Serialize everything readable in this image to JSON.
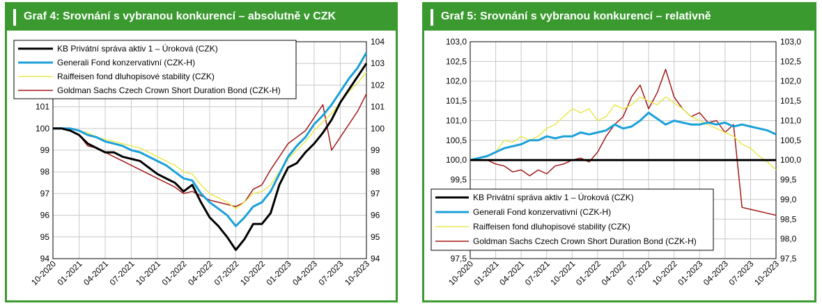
{
  "colors": {
    "header": "#3a9a2f",
    "kb": "#000000",
    "generali": "#1aa0d8",
    "raiffeisen": "#e8e850",
    "goldman": "#a01818",
    "grid": "#c8c8c8"
  },
  "charts": [
    {
      "title": "Graf 4: Srovnání s vybranou konkurencí – absolutně v CZK"
    },
    {
      "title": "Graf 5: Srovnání s vybranou konkurencí – relativně"
    }
  ],
  "chart_data": [
    {
      "type": "line",
      "title": "Graf 4: Srovnání s vybranou konkurencí – absolutně v CZK",
      "x_ticks": [
        "10-2020",
        "01-2021",
        "04-2021",
        "07-2021",
        "10-2021",
        "01-2022",
        "04-2022",
        "07-2022",
        "10-2022",
        "01-2023",
        "04-2023",
        "07-2023",
        "10-2023"
      ],
      "ylim": [
        94,
        104
      ],
      "y_ticks_left": [
        "94",
        "95",
        "96",
        "97",
        "98",
        "99",
        "100",
        "101"
      ],
      "y_ticks_right": [
        "94",
        "95",
        "96",
        "97",
        "98",
        "99",
        "100",
        "101",
        "102",
        "103",
        "104"
      ],
      "grid": true,
      "legend_position": "top-left",
      "series": [
        {
          "name": "KB Privátní správa aktiv 1 – Úroková  (CZK)",
          "color": "#000000",
          "width": 3,
          "x": [
            "2020-10",
            "2020-11",
            "2020-12",
            "2021-01",
            "2021-02",
            "2021-03",
            "2021-04",
            "2021-05",
            "2021-06",
            "2021-07",
            "2021-08",
            "2021-09",
            "2021-10",
            "2021-11",
            "2021-12",
            "2022-01",
            "2022-02",
            "2022-03",
            "2022-04",
            "2022-05",
            "2022-06",
            "2022-07",
            "2022-08",
            "2022-09",
            "2022-10",
            "2022-11",
            "2022-12",
            "2023-01",
            "2023-02",
            "2023-03",
            "2023-04",
            "2023-05",
            "2023-06",
            "2023-07",
            "2023-08",
            "2023-09",
            "2023-10"
          ],
          "values": [
            100.0,
            100.0,
            99.9,
            99.7,
            99.3,
            99.1,
            98.9,
            98.9,
            98.7,
            98.6,
            98.5,
            98.2,
            97.9,
            97.7,
            97.5,
            97.1,
            97.4,
            96.6,
            95.9,
            95.5,
            95.0,
            94.4,
            94.9,
            95.6,
            95.6,
            96.1,
            97.4,
            98.2,
            98.4,
            98.9,
            99.3,
            99.8,
            100.4,
            101.2,
            101.8,
            102.4,
            103.0
          ]
        },
        {
          "name": "Generali Fond konzervativní (CZK-H)",
          "color": "#1aa0d8",
          "width": 3,
          "x": [
            "2020-10",
            "2020-11",
            "2020-12",
            "2021-01",
            "2021-02",
            "2021-03",
            "2021-04",
            "2021-05",
            "2021-06",
            "2021-07",
            "2021-08",
            "2021-09",
            "2021-10",
            "2021-11",
            "2021-12",
            "2022-01",
            "2022-02",
            "2022-03",
            "2022-04",
            "2022-05",
            "2022-06",
            "2022-07",
            "2022-08",
            "2022-09",
            "2022-10",
            "2022-11",
            "2022-12",
            "2023-01",
            "2023-02",
            "2023-03",
            "2023-04",
            "2023-05",
            "2023-06",
            "2023-07",
            "2023-08",
            "2023-09",
            "2023-10"
          ],
          "values": [
            100.0,
            100.0,
            100.0,
            99.9,
            99.7,
            99.6,
            99.4,
            99.3,
            99.2,
            99.0,
            98.9,
            98.7,
            98.5,
            98.3,
            98.0,
            97.7,
            97.6,
            97.0,
            96.6,
            96.3,
            96.0,
            95.5,
            95.9,
            96.4,
            96.6,
            97.1,
            97.9,
            98.7,
            99.2,
            99.6,
            100.2,
            100.6,
            101.1,
            101.7,
            102.3,
            102.8,
            103.5
          ]
        },
        {
          "name": "Raiffeisen fond dluhopisové stability (CZK)",
          "color": "#e8e850",
          "width": 1.5,
          "x": [
            "2020-10",
            "2020-11",
            "2020-12",
            "2021-01",
            "2021-02",
            "2021-03",
            "2021-04",
            "2021-05",
            "2021-06",
            "2021-07",
            "2021-08",
            "2021-09",
            "2021-10",
            "2021-11",
            "2021-12",
            "2022-01",
            "2022-02",
            "2022-03",
            "2022-04",
            "2022-05",
            "2022-06",
            "2022-07",
            "2022-08",
            "2022-09",
            "2022-10",
            "2022-11",
            "2022-12",
            "2023-01",
            "2023-02",
            "2023-03",
            "2023-04",
            "2023-05",
            "2023-06",
            "2023-07",
            "2023-08",
            "2023-09",
            "2023-10"
          ],
          "values": [
            100.0,
            100.0,
            100.0,
            99.9,
            99.8,
            99.6,
            99.5,
            99.4,
            99.3,
            99.2,
            99.1,
            98.9,
            98.7,
            98.5,
            98.3,
            98.0,
            97.9,
            97.4,
            97.0,
            96.8,
            96.6,
            96.3,
            96.6,
            97.0,
            97.1,
            97.4,
            98.0,
            98.6,
            99.0,
            99.4,
            99.9,
            100.3,
            100.7,
            101.2,
            101.7,
            102.1,
            102.6
          ]
        },
        {
          "name": "Goldman Sachs Czech Crown Short Duration Bond (CZK-H)",
          "color": "#a01818",
          "width": 1.5,
          "x": [
            "2020-10",
            "2020-11",
            "2020-12",
            "2021-01",
            "2021-02",
            "2021-03",
            "2021-04",
            "2021-05",
            "2021-06",
            "2021-07",
            "2021-08",
            "2021-09",
            "2021-10",
            "2021-11",
            "2021-12",
            "2022-01",
            "2022-02",
            "2022-03",
            "2022-04",
            "2022-05",
            "2022-06",
            "2022-07",
            "2022-08",
            "2022-09",
            "2022-10",
            "2022-11",
            "2022-12",
            "2023-01",
            "2023-02",
            "2023-03",
            "2023-04",
            "2023-05",
            "2023-06",
            "2023-07",
            "2023-08",
            "2023-09",
            "2023-10"
          ],
          "values": [
            100.0,
            100.0,
            99.9,
            99.7,
            99.2,
            99.1,
            98.9,
            98.7,
            98.5,
            98.3,
            98.1,
            97.9,
            97.7,
            97.5,
            97.3,
            97.0,
            97.1,
            96.9,
            96.7,
            96.6,
            96.5,
            96.4,
            96.6,
            97.2,
            97.4,
            98.1,
            98.7,
            99.3,
            99.6,
            99.9,
            100.5,
            101.1,
            99.0,
            99.6,
            100.2,
            100.8,
            101.6
          ]
        }
      ]
    },
    {
      "type": "line",
      "title": "Graf 5: Srovnání s vybranou konkurencí – relativně",
      "x_ticks": [
        "10-2020",
        "01-2021",
        "04-2021",
        "07-2021",
        "10-2021",
        "01-2022",
        "04-2022",
        "07-2022",
        "10-2022",
        "01-2023",
        "04-2023",
        "07-2023",
        "10-2023"
      ],
      "ylim": [
        97.5,
        103.0
      ],
      "y_ticks_left": [
        "97,5",
        "98,0",
        "98,5",
        "99,0",
        "99,5",
        "100,0",
        "100,5",
        "101,0",
        "101,5",
        "102,0",
        "102,5",
        "103,0"
      ],
      "y_ticks_right": [
        "97,5",
        "98,0",
        "98,5",
        "99,0",
        "99,5",
        "100,0",
        "100,5",
        "101,0",
        "101,5",
        "102,0",
        "102,5",
        "103,0"
      ],
      "grid": true,
      "legend_position": "bottom-left",
      "series": [
        {
          "name": "KB Privátní správa aktiv 1 – Úroková  (CZK)",
          "color": "#000000",
          "width": 3,
          "x": [
            "2020-10",
            "2023-10"
          ],
          "values": [
            100.0,
            100.0
          ]
        },
        {
          "name": "Generali Fond konzervativní (CZK-H)",
          "color": "#1aa0d8",
          "width": 3,
          "x": [
            "2020-10",
            "2020-11",
            "2020-12",
            "2021-01",
            "2021-02",
            "2021-03",
            "2021-04",
            "2021-05",
            "2021-06",
            "2021-07",
            "2021-08",
            "2021-09",
            "2021-10",
            "2021-11",
            "2021-12",
            "2022-01",
            "2022-02",
            "2022-03",
            "2022-04",
            "2022-05",
            "2022-06",
            "2022-07",
            "2022-08",
            "2022-09",
            "2022-10",
            "2022-11",
            "2022-12",
            "2023-01",
            "2023-02",
            "2023-03",
            "2023-04",
            "2023-05",
            "2023-06",
            "2023-07",
            "2023-08",
            "2023-09",
            "2023-10"
          ],
          "values": [
            100.0,
            100.05,
            100.1,
            100.2,
            100.3,
            100.35,
            100.4,
            100.5,
            100.5,
            100.6,
            100.55,
            100.6,
            100.6,
            100.7,
            100.65,
            100.7,
            100.75,
            100.9,
            100.8,
            100.85,
            101.0,
            101.2,
            101.05,
            100.9,
            101.0,
            100.95,
            100.9,
            100.9,
            100.95,
            100.9,
            100.95,
            100.85,
            100.9,
            100.85,
            100.8,
            100.75,
            100.65
          ]
        },
        {
          "name": "Raiffeisen fond dluhopisové stability (CZK)",
          "color": "#e8e850",
          "width": 1.5,
          "x": [
            "2020-10",
            "2020-11",
            "2020-12",
            "2021-01",
            "2021-02",
            "2021-03",
            "2021-04",
            "2021-05",
            "2021-06",
            "2021-07",
            "2021-08",
            "2021-09",
            "2021-10",
            "2021-11",
            "2021-12",
            "2022-01",
            "2022-02",
            "2022-03",
            "2022-04",
            "2022-05",
            "2022-06",
            "2022-07",
            "2022-08",
            "2022-09",
            "2022-10",
            "2022-11",
            "2022-12",
            "2023-01",
            "2023-02",
            "2023-03",
            "2023-04",
            "2023-05",
            "2023-06",
            "2023-07",
            "2023-08",
            "2023-09",
            "2023-10"
          ],
          "values": [
            100.0,
            100.05,
            100.1,
            100.2,
            100.5,
            100.45,
            100.6,
            100.5,
            100.6,
            100.8,
            100.9,
            101.1,
            101.3,
            101.2,
            101.3,
            101.0,
            101.1,
            101.4,
            101.3,
            101.4,
            101.6,
            101.5,
            101.4,
            101.6,
            101.45,
            101.3,
            101.1,
            101.0,
            100.9,
            100.8,
            100.7,
            100.6,
            100.4,
            100.3,
            100.1,
            99.95,
            99.75
          ]
        },
        {
          "name": "Goldman Sachs Czech Crown Short Duration Bond (CZK-H)",
          "color": "#a01818",
          "width": 1.5,
          "x": [
            "2020-10",
            "2020-11",
            "2020-12",
            "2021-01",
            "2021-02",
            "2021-03",
            "2021-04",
            "2021-05",
            "2021-06",
            "2021-07",
            "2021-08",
            "2021-09",
            "2021-10",
            "2021-11",
            "2021-12",
            "2022-01",
            "2022-02",
            "2022-03",
            "2022-04",
            "2022-05",
            "2022-06",
            "2022-07",
            "2022-08",
            "2022-09",
            "2022-10",
            "2022-11",
            "2022-12",
            "2023-01",
            "2023-02",
            "2023-03",
            "2023-04",
            "2023-05",
            "2023-06",
            "2023-07",
            "2023-08",
            "2023-09",
            "2023-10"
          ],
          "values": [
            100.0,
            100.0,
            100.0,
            99.9,
            99.85,
            99.7,
            99.75,
            99.6,
            99.75,
            99.65,
            99.85,
            99.9,
            100.0,
            100.05,
            99.95,
            100.2,
            100.6,
            100.9,
            101.1,
            101.6,
            101.9,
            101.3,
            101.7,
            102.3,
            101.6,
            101.3,
            101.1,
            101.2,
            100.95,
            101.0,
            100.7,
            100.9,
            98.8,
            98.75,
            98.7,
            98.65,
            98.6
          ]
        }
      ]
    }
  ]
}
